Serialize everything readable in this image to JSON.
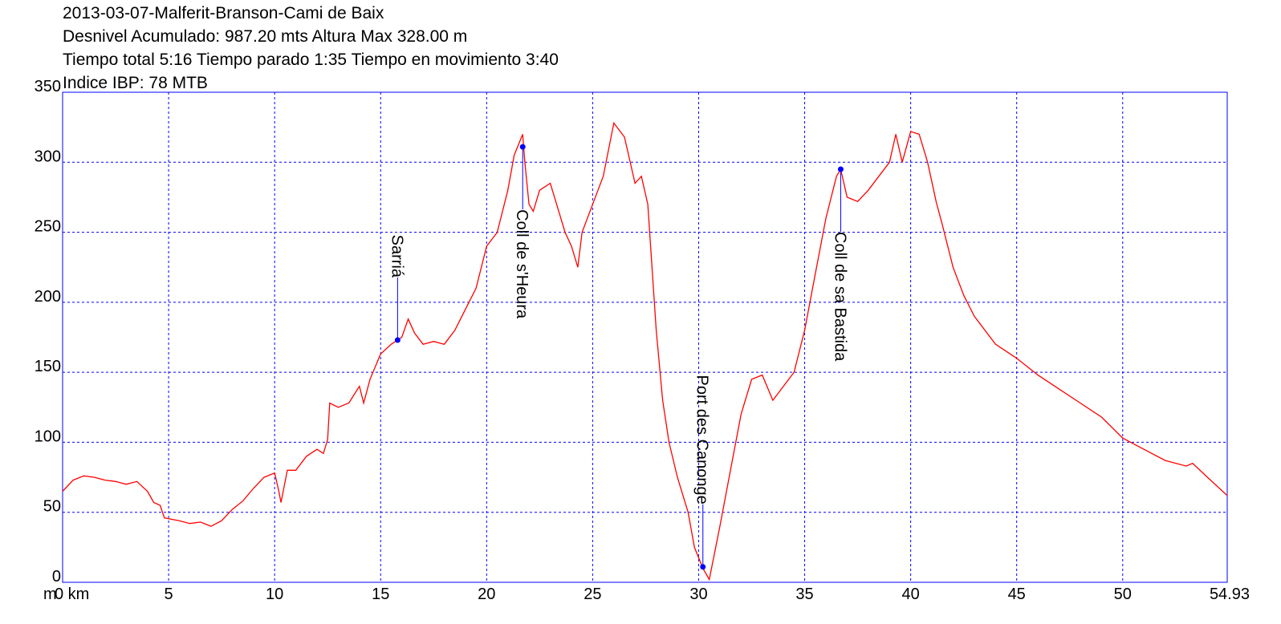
{
  "chart_data": {
    "type": "line",
    "title_lines": [
      "2013-03-07-Malferit-Branson-Cami de Baix",
      "Desnivel Acumulado: 987.20 mts  Altura Max 328.00 m",
      "Tiempo total 5:16 Tiempo parado 1:35 Tiempo en movimiento 3:40",
      "Indice IBP: 78 MTB"
    ],
    "y_unit": "m",
    "xlim": [
      0,
      54.93
    ],
    "ylim": [
      0,
      350
    ],
    "xticks": [
      {
        "value": 0,
        "label": "0 km"
      },
      5,
      10,
      15,
      20,
      25,
      30,
      35,
      40,
      45,
      50,
      54.93
    ],
    "yticks": [
      0,
      50,
      100,
      150,
      200,
      250,
      300,
      350
    ],
    "grid": true,
    "grid_color": "#0000ff",
    "frame_color": "#0000ff",
    "series": [
      {
        "color": "#ff0000",
        "x": [
          0,
          0.5,
          1,
          1.5,
          2,
          2.5,
          3,
          3.5,
          4,
          4.3,
          4.6,
          4.8,
          5.5,
          6,
          6.5,
          7,
          7.5,
          8,
          8.5,
          9,
          9.5,
          10,
          10.2,
          10.3,
          10.6,
          11,
          11.5,
          12,
          12.3,
          12.5,
          12.6,
          13,
          13.5,
          14,
          14.2,
          14.5,
          15,
          15.5,
          15.8,
          16,
          16.3,
          16.6,
          17,
          17.5,
          18,
          18.5,
          19,
          19.5,
          20,
          20.5,
          21,
          21.3,
          21.7,
          21.8,
          22,
          22.2,
          22.5,
          23,
          23.3,
          23.7,
          24,
          24.3,
          24.5,
          25,
          25.5,
          26,
          26.5,
          27,
          27.3,
          27.6,
          28,
          28.3,
          28.6,
          29,
          29.5,
          29.8,
          30.2,
          30.5,
          31,
          31.5,
          32,
          32.5,
          33,
          33.5,
          34,
          34.5,
          35,
          35.5,
          36,
          36.5,
          36.7,
          37,
          37.5,
          38,
          38.5,
          39,
          39.3,
          39.6,
          40,
          40.4,
          40.8,
          41.2,
          41.5,
          42,
          42.5,
          43,
          44,
          45,
          46,
          47,
          48,
          49,
          50,
          51,
          52,
          53,
          53.3,
          54,
          54.93
        ],
        "values": [
          65,
          73,
          76,
          75,
          73,
          72,
          70,
          72,
          65,
          57,
          55,
          46,
          44,
          42,
          43,
          40,
          44,
          52,
          58,
          67,
          75,
          78,
          65,
          57,
          80,
          80,
          90,
          95,
          92,
          102,
          128,
          125,
          128,
          140,
          128,
          145,
          163,
          170,
          173,
          175,
          188,
          178,
          170,
          172,
          170,
          180,
          195,
          210,
          240,
          250,
          280,
          305,
          320,
          300,
          270,
          265,
          280,
          285,
          270,
          250,
          240,
          225,
          250,
          270,
          290,
          328,
          318,
          285,
          290,
          270,
          180,
          130,
          100,
          75,
          50,
          25,
          10,
          2,
          40,
          80,
          120,
          145,
          148,
          130,
          140,
          150,
          180,
          220,
          260,
          290,
          295,
          275,
          272,
          280,
          290,
          300,
          320,
          300,
          322,
          320,
          300,
          272,
          255,
          225,
          205,
          190,
          170,
          160,
          148,
          138,
          128,
          118,
          103,
          95,
          87,
          83,
          85,
          75,
          62
        ]
      }
    ],
    "annotations": [
      {
        "label": "Sarriá",
        "x": 15.8,
        "y": 173,
        "position": "above"
      },
      {
        "label": "Coll de s'Heura",
        "x": 21.7,
        "y": 311,
        "position": "below"
      },
      {
        "label": "Port des Canonge",
        "x": 30.2,
        "y": 11,
        "position": "above"
      },
      {
        "label": "Coll de sa Bastida",
        "x": 36.7,
        "y": 295,
        "position": "below"
      }
    ]
  }
}
